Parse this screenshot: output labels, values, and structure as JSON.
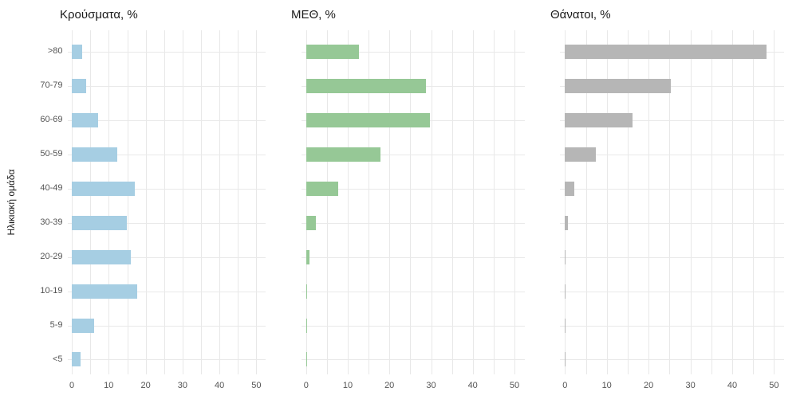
{
  "chart_data": {
    "type": "bar",
    "orientation": "horizontal",
    "title": "",
    "xlabel": "",
    "ylabel": "Ηλικιακή ομάδα",
    "categories": [
      ">80",
      "70-79",
      "60-69",
      "50-59",
      "40-49",
      "30-39",
      "20-29",
      "10-19",
      "5-9",
      "<5"
    ],
    "series": [
      {
        "name": "Κρούσματα, %",
        "color": "#a6cee3",
        "values": [
          2.9,
          3.9,
          7.2,
          12.4,
          17.1,
          15.0,
          15.9,
          17.7,
          6.0,
          2.3
        ]
      },
      {
        "name": "ΜΕΘ, %",
        "color": "#96c896",
        "values": [
          12.7,
          28.8,
          29.7,
          17.9,
          7.8,
          2.3,
          0.9,
          0.3,
          0.1,
          0.2
        ]
      },
      {
        "name": "Θάνατοι, %",
        "color": "#b6b6b6",
        "values": [
          48.3,
          25.4,
          16.1,
          7.3,
          2.3,
          0.7,
          0.1,
          0.1,
          0.05,
          0.1
        ]
      }
    ],
    "xlim": [
      0,
      50
    ],
    "xticks": [
      0,
      10,
      20,
      30,
      40,
      50
    ],
    "minor_gridline_step": 5,
    "grid": true,
    "legend": false,
    "background": "#ffffff",
    "gridline_color": "#e8e8e8",
    "tick_label_color": "#555555",
    "title_color": "#1a1a1a"
  }
}
